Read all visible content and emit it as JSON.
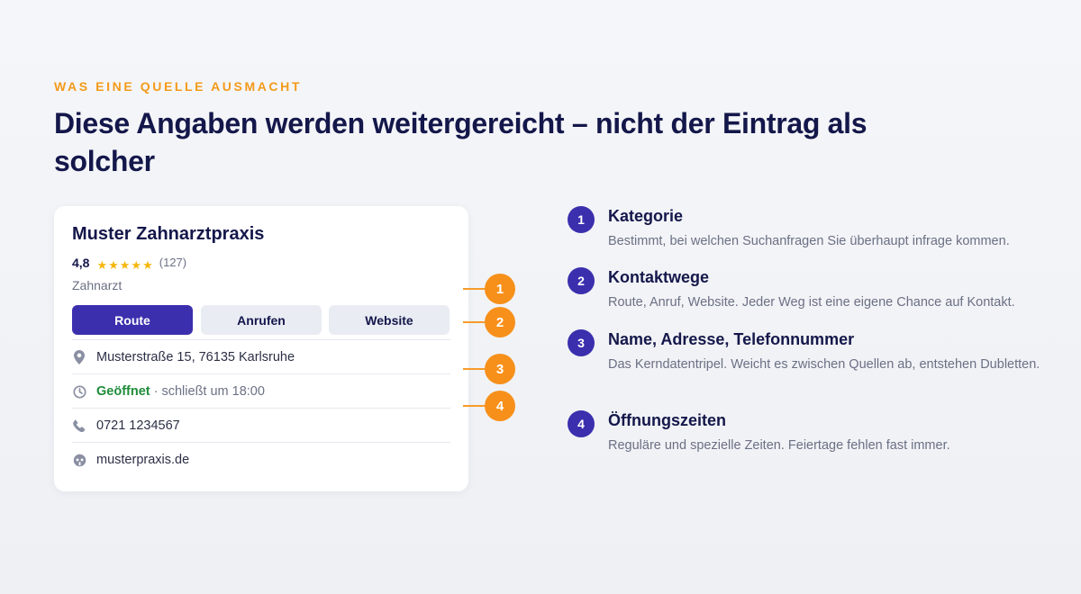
{
  "eyebrow": "WAS EINE QUELLE AUSMACHT",
  "headline": "Diese Angaben werden weitergereicht – nicht der Eintrag als solcher",
  "card": {
    "name": "Muster Zahnarztpraxis",
    "rating": "4,8",
    "stars": "★★★★★",
    "star_count": 5,
    "reviews": "(127)",
    "category": "Zahnarzt",
    "buttons": {
      "route": "Route",
      "call": "Anrufen",
      "website": "Website"
    },
    "address": "Musterstraße 15, 76135 Karlsruhe",
    "hours_status": "Geöffnet",
    "hours_detail": "· schließt um 18:00",
    "phone": "0721 1234567",
    "web": "musterpraxis.de"
  },
  "markers": [
    "1",
    "2",
    "3",
    "4"
  ],
  "items": [
    {
      "num": "1",
      "title": "Kategorie",
      "desc": "Bestimmt, bei welchen Suchanfragen Sie überhaupt infrage kommen."
    },
    {
      "num": "2",
      "title": "Kontaktwege",
      "desc": "Route, Anruf, Website. Jeder Weg ist eine eigene Chance auf Kontakt."
    },
    {
      "num": "3",
      "title": "Name, Adresse, Telefonnummer",
      "desc": "Das Kerndatentripel. Weicht es zwischen Quellen ab, entstehen Dubletten."
    },
    {
      "num": "4",
      "title": "Öffnungszeiten",
      "desc": "Reguläre und spezielle Zeiten. Feiertage fehlen fast immer."
    }
  ],
  "colors": {
    "accent_orange": "#f7901a",
    "primary_indigo": "#3b2fae",
    "heading": "#14174a",
    "muted": "#6b7084",
    "open_green": "#1e8c3a",
    "star": "#f5b70d"
  }
}
